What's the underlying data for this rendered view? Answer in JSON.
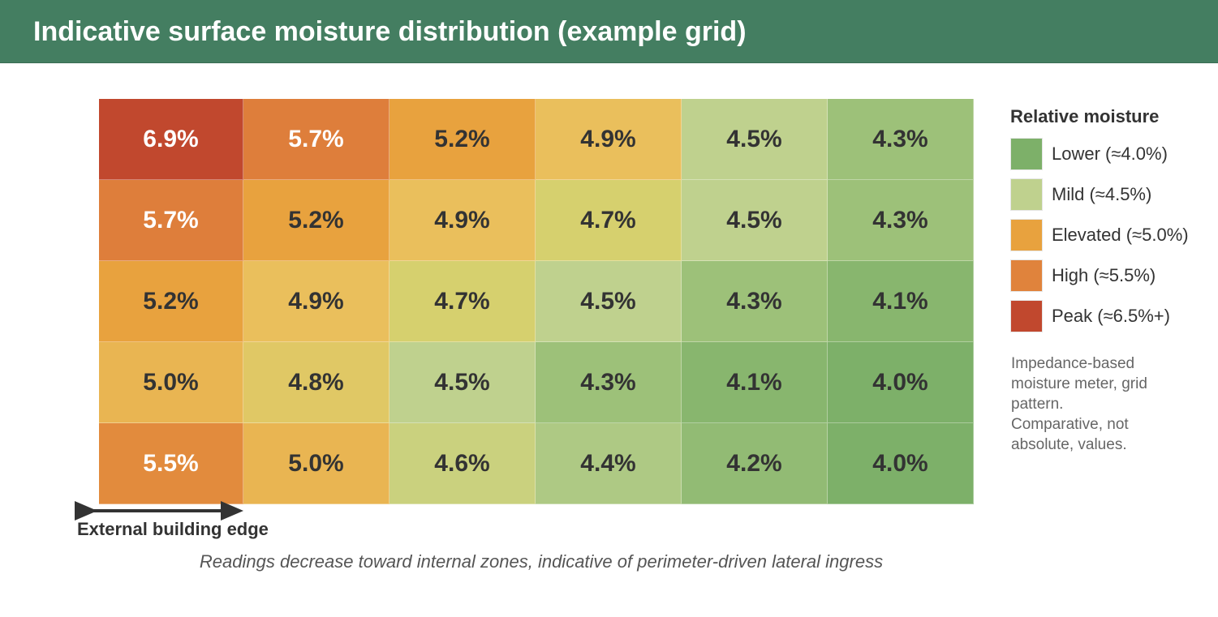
{
  "header": {
    "title": "Indicative surface moisture distribution (example grid)"
  },
  "chart_data": {
    "type": "heatmap",
    "title": "Indicative surface moisture distribution (example grid)",
    "values": [
      [
        6.9,
        5.7,
        5.2,
        4.9,
        4.5,
        4.3
      ],
      [
        5.7,
        5.2,
        4.9,
        4.7,
        4.5,
        4.3
      ],
      [
        5.2,
        4.9,
        4.7,
        4.5,
        4.3,
        4.1
      ],
      [
        5.0,
        4.8,
        4.5,
        4.3,
        4.1,
        4.0
      ],
      [
        5.5,
        5.0,
        4.6,
        4.4,
        4.2,
        4.0
      ]
    ],
    "labels": [
      [
        "6.9%",
        "5.7%",
        "5.2%",
        "4.9%",
        "4.5%",
        "4.3%"
      ],
      [
        "5.7%",
        "5.2%",
        "4.9%",
        "4.7%",
        "4.5%",
        "4.3%"
      ],
      [
        "5.2%",
        "4.9%",
        "4.7%",
        "4.5%",
        "4.3%",
        "4.1%"
      ],
      [
        "5.0%",
        "4.8%",
        "4.5%",
        "4.3%",
        "4.1%",
        "4.0%"
      ],
      [
        "5.5%",
        "5.0%",
        "4.6%",
        "4.4%",
        "4.2%",
        "4.0%"
      ]
    ],
    "unit": "%",
    "legend_placement": "right",
    "grid": true
  },
  "legend": {
    "title": "Relative moisture",
    "items": [
      {
        "label": "Lower (≈4.0%)",
        "color": "#7db069"
      },
      {
        "label": "Mild (≈4.5%)",
        "color": "#bfd18e"
      },
      {
        "label": "Elevated (≈5.0%)",
        "color": "#e8a23e"
      },
      {
        "label": "High (≈5.5%)",
        "color": "#e0833c"
      },
      {
        "label": "Peak (≈6.5%+)",
        "color": "#c1482e"
      }
    ],
    "note": "Impedance-based moisture meter, grid pattern. Comparative, not absolute, values."
  },
  "annotation": {
    "edge_label": "External building edge"
  },
  "caption": "Readings decrease toward internal zones, indicative of perimeter-driven lateral ingress"
}
